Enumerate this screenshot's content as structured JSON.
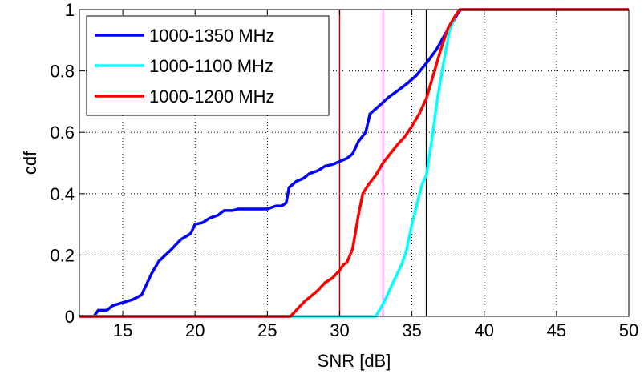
{
  "chart_data": {
    "type": "line",
    "xlabel": "SNR [dB]",
    "ylabel": "cdf",
    "xlim": [
      12,
      50
    ],
    "ylim": [
      0,
      1
    ],
    "x_ticks": [
      "15",
      "20",
      "25",
      "30",
      "35",
      "40",
      "45",
      "50"
    ],
    "y_ticks": [
      "0",
      "0.2",
      "0.4",
      "0.6",
      "0.8",
      "1"
    ],
    "grid": true,
    "legend_position": "top-left",
    "series": [
      {
        "name": "1000-1350 MHz",
        "color": "#0000ff",
        "points": [
          [
            12,
            0
          ],
          [
            13,
            0
          ],
          [
            13.3,
            0.02
          ],
          [
            13.9,
            0.02
          ],
          [
            14.3,
            0.035
          ],
          [
            15,
            0.045
          ],
          [
            15.7,
            0.055
          ],
          [
            16.3,
            0.07
          ],
          [
            17,
            0.14
          ],
          [
            17.5,
            0.18
          ],
          [
            18.3,
            0.215
          ],
          [
            19,
            0.25
          ],
          [
            19.7,
            0.27
          ],
          [
            20,
            0.3
          ],
          [
            20.5,
            0.305
          ],
          [
            21,
            0.32
          ],
          [
            21.6,
            0.33
          ],
          [
            22,
            0.345
          ],
          [
            22.6,
            0.345
          ],
          [
            23,
            0.35
          ],
          [
            24,
            0.35
          ],
          [
            25,
            0.35
          ],
          [
            25.6,
            0.36
          ],
          [
            26,
            0.36
          ],
          [
            26.3,
            0.37
          ],
          [
            26.5,
            0.42
          ],
          [
            27,
            0.44
          ],
          [
            27.5,
            0.45
          ],
          [
            27.9,
            0.465
          ],
          [
            28.5,
            0.475
          ],
          [
            29,
            0.49
          ],
          [
            29.5,
            0.495
          ],
          [
            30,
            0.505
          ],
          [
            30.5,
            0.515
          ],
          [
            30.9,
            0.53
          ],
          [
            31.3,
            0.57
          ],
          [
            31.8,
            0.6
          ],
          [
            32.1,
            0.66
          ],
          [
            32.7,
            0.685
          ],
          [
            33.4,
            0.715
          ],
          [
            34,
            0.735
          ],
          [
            34.7,
            0.76
          ],
          [
            35.3,
            0.785
          ],
          [
            36,
            0.825
          ],
          [
            36.7,
            0.87
          ],
          [
            37.3,
            0.92
          ],
          [
            37.9,
            0.965
          ],
          [
            38.2,
            0.99
          ],
          [
            38.4,
            1
          ],
          [
            50,
            1
          ]
        ]
      },
      {
        "name": "1000-1100 MHz",
        "color": "#00ffff",
        "points": [
          [
            12,
            0
          ],
          [
            32.5,
            0
          ],
          [
            33,
            0.04
          ],
          [
            33.4,
            0.08
          ],
          [
            33.8,
            0.12
          ],
          [
            34.3,
            0.17
          ],
          [
            34.6,
            0.21
          ],
          [
            35,
            0.3
          ],
          [
            35.7,
            0.43
          ],
          [
            36,
            0.46
          ],
          [
            36.3,
            0.55
          ],
          [
            36.8,
            0.72
          ],
          [
            37.2,
            0.83
          ],
          [
            37.6,
            0.93
          ],
          [
            38,
            0.98
          ],
          [
            38.3,
            1
          ],
          [
            50,
            1
          ]
        ]
      },
      {
        "name": "1000-1200 MHz",
        "color": "#ff0000",
        "points": [
          [
            12,
            0
          ],
          [
            26.6,
            0
          ],
          [
            27,
            0.02
          ],
          [
            27.6,
            0.05
          ],
          [
            28,
            0.065
          ],
          [
            28.5,
            0.085
          ],
          [
            29,
            0.11
          ],
          [
            29.5,
            0.125
          ],
          [
            30,
            0.15
          ],
          [
            30.3,
            0.17
          ],
          [
            30.5,
            0.175
          ],
          [
            30.9,
            0.22
          ],
          [
            31.3,
            0.33
          ],
          [
            31.6,
            0.4
          ],
          [
            32,
            0.43
          ],
          [
            32.5,
            0.46
          ],
          [
            33,
            0.5
          ],
          [
            33.5,
            0.53
          ],
          [
            34,
            0.56
          ],
          [
            34.5,
            0.585
          ],
          [
            35,
            0.62
          ],
          [
            35.5,
            0.66
          ],
          [
            36,
            0.71
          ],
          [
            36.5,
            0.79
          ],
          [
            37,
            0.87
          ],
          [
            37.5,
            0.94
          ],
          [
            38,
            0.98
          ],
          [
            38.3,
            1
          ],
          [
            50,
            1
          ]
        ]
      }
    ],
    "reference_lines": [
      {
        "x": 30,
        "color": "#c00000"
      },
      {
        "x": 33,
        "color": "#e040e0"
      },
      {
        "x": 36,
        "color": "#000000"
      }
    ]
  }
}
